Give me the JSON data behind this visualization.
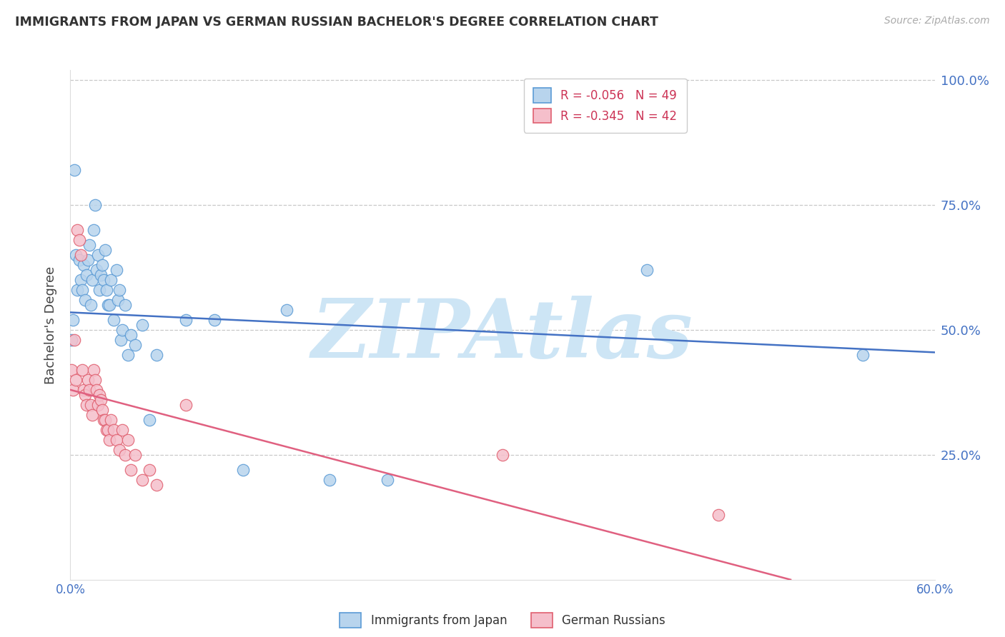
{
  "title": "IMMIGRANTS FROM JAPAN VS GERMAN RUSSIAN BACHELOR'S DEGREE CORRELATION CHART",
  "source": "Source: ZipAtlas.com",
  "ylabel": "Bachelor's Degree",
  "xlim": [
    0.0,
    0.6
  ],
  "ylim": [
    0.0,
    1.02
  ],
  "xtick_vals": [
    0.0,
    0.1,
    0.2,
    0.3,
    0.4,
    0.5,
    0.6
  ],
  "xtick_labels": [
    "0.0%",
    "",
    "",
    "",
    "",
    "",
    "60.0%"
  ],
  "ytick_vals": [
    0.25,
    0.5,
    0.75,
    1.0
  ],
  "ytick_labels_right": [
    "25.0%",
    "50.0%",
    "75.0%",
    "100.0%"
  ],
  "series1_label": "Immigrants from Japan",
  "series1_R": "-0.056",
  "series1_N": "49",
  "series1_face": "#b8d4ed",
  "series1_edge": "#5b9bd5",
  "series2_label": "German Russians",
  "series2_R": "-0.345",
  "series2_N": "42",
  "series2_face": "#f5bfcb",
  "series2_edge": "#e06070",
  "series1_x": [
    0.001,
    0.002,
    0.003,
    0.004,
    0.005,
    0.006,
    0.007,
    0.008,
    0.009,
    0.01,
    0.011,
    0.012,
    0.013,
    0.014,
    0.015,
    0.016,
    0.017,
    0.018,
    0.019,
    0.02,
    0.021,
    0.022,
    0.023,
    0.024,
    0.025,
    0.026,
    0.027,
    0.028,
    0.03,
    0.032,
    0.033,
    0.034,
    0.035,
    0.036,
    0.038,
    0.04,
    0.042,
    0.045,
    0.05,
    0.055,
    0.06,
    0.08,
    0.1,
    0.12,
    0.15,
    0.18,
    0.22,
    0.4,
    0.55
  ],
  "series1_y": [
    0.48,
    0.52,
    0.82,
    0.65,
    0.58,
    0.64,
    0.6,
    0.58,
    0.63,
    0.56,
    0.61,
    0.64,
    0.67,
    0.55,
    0.6,
    0.7,
    0.75,
    0.62,
    0.65,
    0.58,
    0.61,
    0.63,
    0.6,
    0.66,
    0.58,
    0.55,
    0.55,
    0.6,
    0.52,
    0.62,
    0.56,
    0.58,
    0.48,
    0.5,
    0.55,
    0.45,
    0.49,
    0.47,
    0.51,
    0.32,
    0.45,
    0.52,
    0.52,
    0.22,
    0.54,
    0.2,
    0.2,
    0.62,
    0.45
  ],
  "series2_x": [
    0.001,
    0.002,
    0.003,
    0.004,
    0.005,
    0.006,
    0.007,
    0.008,
    0.009,
    0.01,
    0.011,
    0.012,
    0.013,
    0.014,
    0.015,
    0.016,
    0.017,
    0.018,
    0.019,
    0.02,
    0.021,
    0.022,
    0.023,
    0.024,
    0.025,
    0.026,
    0.027,
    0.028,
    0.03,
    0.032,
    0.034,
    0.036,
    0.038,
    0.04,
    0.042,
    0.045,
    0.05,
    0.055,
    0.06,
    0.08,
    0.3,
    0.45
  ],
  "series2_y": [
    0.42,
    0.38,
    0.48,
    0.4,
    0.7,
    0.68,
    0.65,
    0.42,
    0.38,
    0.37,
    0.35,
    0.4,
    0.38,
    0.35,
    0.33,
    0.42,
    0.4,
    0.38,
    0.35,
    0.37,
    0.36,
    0.34,
    0.32,
    0.32,
    0.3,
    0.3,
    0.28,
    0.32,
    0.3,
    0.28,
    0.26,
    0.3,
    0.25,
    0.28,
    0.22,
    0.25,
    0.2,
    0.22,
    0.19,
    0.35,
    0.25,
    0.13
  ],
  "trend1_x0": 0.0,
  "trend1_y0": 0.535,
  "trend1_x1": 0.6,
  "trend1_y1": 0.455,
  "trend1_color": "#4472c4",
  "trend2_x0": 0.0,
  "trend2_y0": 0.38,
  "trend2_x1": 0.5,
  "trend2_y1": 0.0,
  "trend2_color": "#e06080",
  "watermark": "ZIPAtlas",
  "watermark_color": "#cde5f5",
  "bg_color": "#ffffff",
  "grid_color": "#c8c8c8"
}
